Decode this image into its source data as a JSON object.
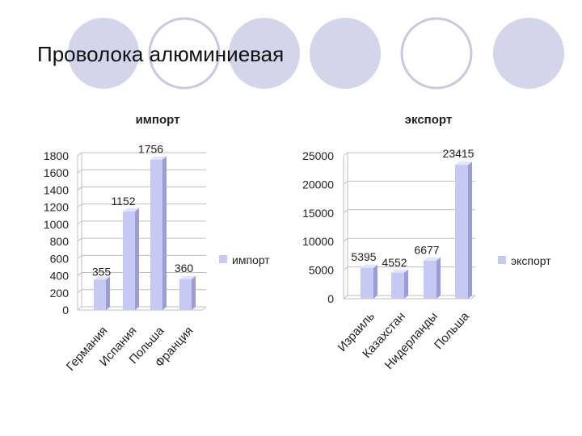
{
  "slide": {
    "title": "Проволока алюминиевая"
  },
  "colors": {
    "circle_fill": "#d4d4ea",
    "circle_outline": "#c8c8e2",
    "bar_front": "#c7c9f5",
    "bar_top": "#e3e4fb",
    "bar_side": "#9a9dd6",
    "axis": "#bfbfbf"
  },
  "chart_data": [
    {
      "type": "bar",
      "title": "импорт",
      "categories": [
        "Германия",
        "Испания",
        "Польша",
        "Франция"
      ],
      "series": [
        {
          "name": "импорт",
          "values": [
            355,
            1152,
            1756,
            360
          ]
        }
      ],
      "ylim": [
        0,
        1800
      ],
      "yticks": [
        0,
        200,
        400,
        600,
        800,
        1000,
        1200,
        1400,
        1600,
        1800
      ],
      "xlabel": "",
      "ylabel": "",
      "legend": "right",
      "grid": true
    },
    {
      "type": "bar",
      "title": "экспорт",
      "categories": [
        "Израиль",
        "Казахстан",
        "Нидерланды",
        "Польша"
      ],
      "series": [
        {
          "name": "экспорт",
          "values": [
            5395,
            4552,
            6677,
            23415
          ]
        }
      ],
      "ylim": [
        0,
        25000
      ],
      "yticks": [
        0,
        5000,
        10000,
        15000,
        20000,
        25000
      ],
      "xlabel": "",
      "ylabel": "",
      "legend": "right",
      "grid": true
    }
  ]
}
